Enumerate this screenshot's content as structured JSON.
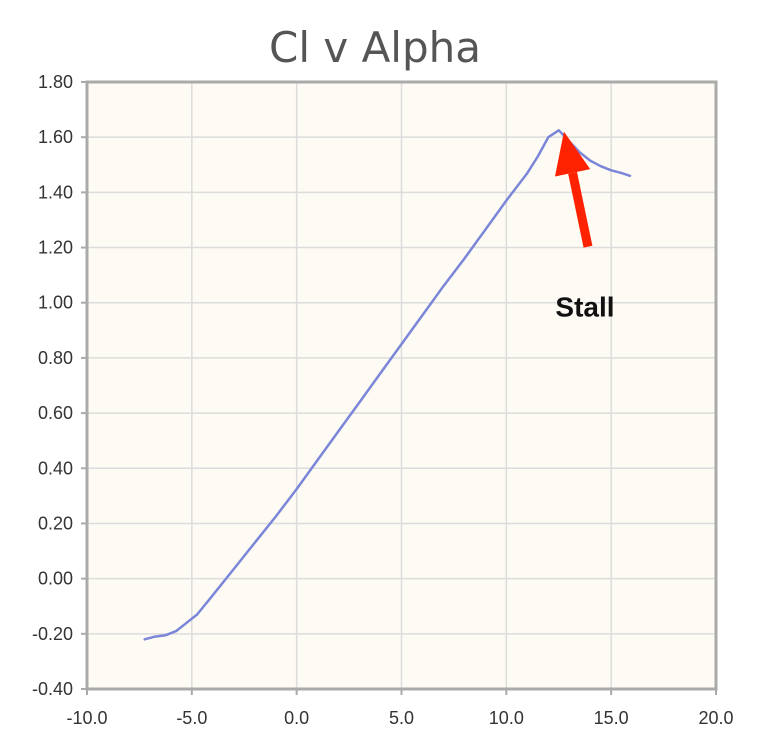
{
  "chart_data": {
    "type": "line",
    "title": "Cl v Alpha",
    "xlabel": "",
    "ylabel": "",
    "xlim": [
      -10,
      20
    ],
    "ylim": [
      -0.4,
      1.8
    ],
    "x_ticks": [
      "-10.0",
      "-5.0",
      "0.0",
      "5.0",
      "10.0",
      "15.0",
      "20.0"
    ],
    "y_ticks": [
      "-0.40",
      "-0.20",
      "0.00",
      "0.20",
      "0.40",
      "0.60",
      "0.80",
      "1.00",
      "1.20",
      "1.40",
      "1.60",
      "1.80"
    ],
    "grid": true,
    "series": [
      {
        "color": "#7b86d9",
        "points": [
          [
            -7.25,
            -0.22
          ],
          [
            -6.75,
            -0.21
          ],
          [
            -6.25,
            -0.205
          ],
          [
            -5.75,
            -0.19
          ],
          [
            -5.25,
            -0.16
          ],
          [
            -4.75,
            -0.13
          ],
          [
            -4.0,
            -0.06
          ],
          [
            -3.0,
            0.035
          ],
          [
            -2.0,
            0.13
          ],
          [
            -1.0,
            0.225
          ],
          [
            0.0,
            0.325
          ],
          [
            1.0,
            0.43
          ],
          [
            2.0,
            0.535
          ],
          [
            3.0,
            0.64
          ],
          [
            4.0,
            0.745
          ],
          [
            5.0,
            0.85
          ],
          [
            6.0,
            0.955
          ],
          [
            7.0,
            1.06
          ],
          [
            8.0,
            1.16
          ],
          [
            9.0,
            1.265
          ],
          [
            10.0,
            1.37
          ],
          [
            11.0,
            1.47
          ],
          [
            11.5,
            1.53
          ],
          [
            12.0,
            1.6
          ],
          [
            12.5,
            1.625
          ],
          [
            13.0,
            1.585
          ],
          [
            13.5,
            1.545
          ],
          [
            14.0,
            1.515
          ],
          [
            14.5,
            1.495
          ],
          [
            15.0,
            1.48
          ],
          [
            15.5,
            1.47
          ],
          [
            15.9,
            1.46
          ]
        ]
      }
    ],
    "annotations": [
      {
        "text": "Stall",
        "arrow_to": [
          12.75,
          1.62
        ],
        "arrow_color": "#ff2200"
      }
    ]
  },
  "colors": {
    "plot_bg": "#fdfbf3",
    "grid": "#dcdcdc",
    "frame": "#aaaaaa",
    "series": "#7b86d9",
    "arrow": "#ff2200"
  }
}
